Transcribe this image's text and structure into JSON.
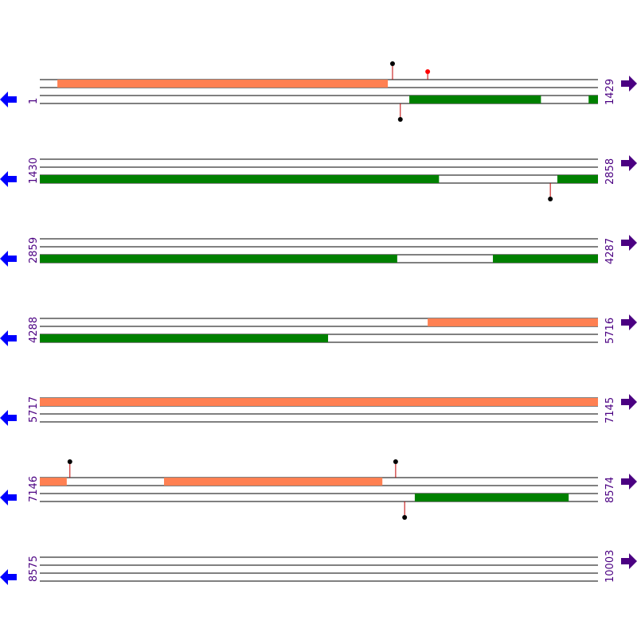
{
  "strand_colors": {
    "top": "#ff8052",
    "bottom": "#008000"
  },
  "rows": [
    {
      "start": 1,
      "end": 1429,
      "features": [
        {
          "strand": "top",
          "start": 46,
          "end": 891
        },
        {
          "strand": "bottom",
          "start": 947,
          "end": 1283
        },
        {
          "strand": "bottom",
          "start": 1406,
          "end": 1429
        }
      ],
      "sites": [
        {
          "strand": "top",
          "pos": 904,
          "color": "#000000"
        },
        {
          "strand": "top",
          "pos": 994,
          "color": "#ff0000"
        },
        {
          "strand": "bottom",
          "pos": 924,
          "color": "#000000"
        }
      ]
    },
    {
      "start": 1430,
      "end": 2858,
      "features": [
        {
          "strand": "bottom",
          "start": 1430,
          "end": 2451
        },
        {
          "strand": "bottom",
          "start": 2755,
          "end": 2858
        }
      ],
      "sites": [
        {
          "strand": "bottom",
          "pos": 2737,
          "color": "#000000"
        }
      ]
    },
    {
      "start": 2859,
      "end": 4287,
      "features": [
        {
          "strand": "bottom",
          "start": 2859,
          "end": 3773
        },
        {
          "strand": "bottom",
          "start": 4019,
          "end": 4287
        }
      ],
      "sites": []
    },
    {
      "start": 4288,
      "end": 5716,
      "features": [
        {
          "strand": "top",
          "start": 5281,
          "end": 5716
        },
        {
          "strand": "bottom",
          "start": 4288,
          "end": 5025
        }
      ],
      "sites": []
    },
    {
      "start": 5717,
      "end": 7145,
      "features": [
        {
          "strand": "top",
          "start": 5717,
          "end": 7145
        }
      ],
      "sites": []
    },
    {
      "start": 7146,
      "end": 8574,
      "features": [
        {
          "strand": "top",
          "start": 7146,
          "end": 7214
        },
        {
          "strand": "top",
          "start": 7464,
          "end": 8022
        },
        {
          "strand": "bottom",
          "start": 8106,
          "end": 8499
        }
      ],
      "sites": [
        {
          "strand": "top",
          "pos": 7223,
          "color": "#000000"
        },
        {
          "strand": "top",
          "pos": 8057,
          "color": "#000000"
        },
        {
          "strand": "bottom",
          "pos": 8080,
          "color": "#000000"
        }
      ]
    },
    {
      "start": 8575,
      "end": 10003,
      "features": [],
      "sites": []
    }
  ]
}
